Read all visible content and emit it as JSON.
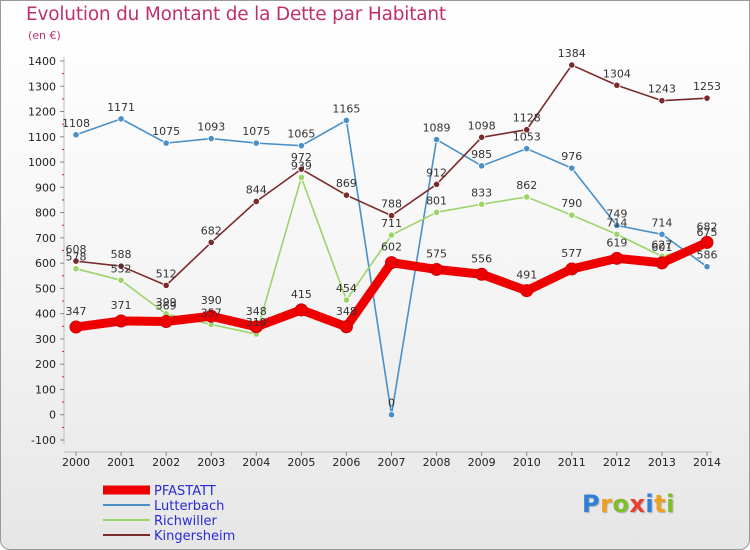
{
  "title": "Evolution du Montant de la Dette par Habitant",
  "unit": "(en €)",
  "brand": {
    "text": "Proxiti",
    "letters": [
      "P",
      "r",
      "o",
      "x",
      "i",
      "t",
      "i"
    ],
    "letter_colors": [
      "#2f7fd8",
      "#f0a020",
      "#7cbf2a",
      "#e84030",
      "#2f7fd8",
      "#f0a020",
      "#7cbf2a"
    ]
  },
  "chart_data": {
    "type": "line",
    "categories": [
      "2000",
      "2001",
      "2002",
      "2003",
      "2004",
      "2005",
      "2006",
      "2007",
      "2008",
      "2009",
      "2010",
      "2011",
      "2012",
      "2013",
      "2014"
    ],
    "ylim": [
      -100,
      1400
    ],
    "yticks": [
      -100,
      0,
      100,
      200,
      300,
      400,
      500,
      600,
      700,
      800,
      900,
      1000,
      1100,
      1200,
      1300,
      1400
    ],
    "grid": false,
    "legend_position": "bottom-left",
    "series": [
      {
        "name": "PFASTATT",
        "color": "#ee0000",
        "values": [
          347,
          371,
          369,
          390,
          348,
          415,
          348,
          602,
          575,
          556,
          491,
          577,
          619,
          601,
          682
        ]
      },
      {
        "name": "Lutterbach",
        "color": "#4a90c8",
        "values": [
          1108,
          1171,
          1075,
          1093,
          1075,
          1065,
          1165,
          0,
          1089,
          985,
          1053,
          976,
          749,
          714,
          586
        ]
      },
      {
        "name": "Richwiller",
        "color": "#9cd46a",
        "values": [
          578,
          532,
          399,
          357,
          319,
          939,
          454,
          711,
          801,
          833,
          862,
          790,
          714,
          627,
          675
        ]
      },
      {
        "name": "Kingersheim",
        "color": "#7a2a2a",
        "values": [
          608,
          588,
          512,
          682,
          844,
          972,
          869,
          788,
          912,
          1098,
          1128,
          1384,
          1304,
          1243,
          1253
        ]
      }
    ]
  }
}
